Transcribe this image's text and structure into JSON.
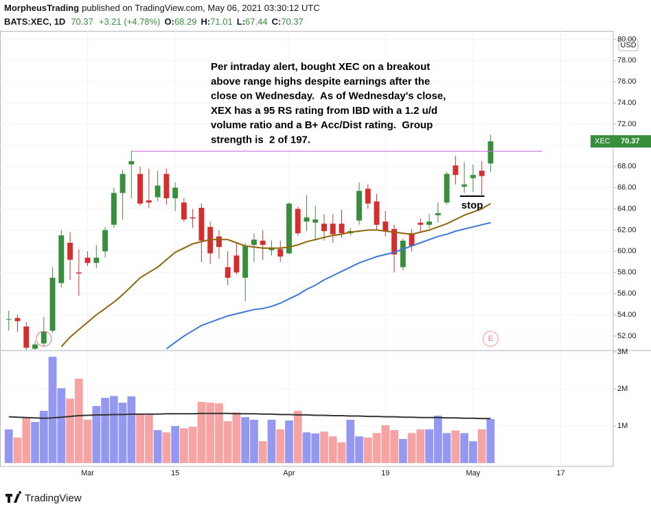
{
  "header": {
    "author": "MorpheusTrading",
    "published": "published on TradingView.com, May 06, 2021 03:30:12 UTC",
    "symbol": "BATS:XEC, 1D",
    "change": "+3.21 (+4.78%)",
    "o_label": "O:",
    "h_label": "H:",
    "l_label": "L:",
    "c_label": "C:",
    "currency": "USD",
    "brand": "TradingView"
  },
  "chart_data": [
    {
      "type": "candlestick",
      "x": [
        "2021-02-16",
        "2021-02-17",
        "2021-02-18",
        "2021-02-19",
        "2021-02-22",
        "2021-02-23",
        "2021-02-24",
        "2021-02-25",
        "2021-02-26",
        "2021-03-01",
        "2021-03-02",
        "2021-03-03",
        "2021-03-04",
        "2021-03-05",
        "2021-03-08",
        "2021-03-09",
        "2021-03-10",
        "2021-03-11",
        "2021-03-12",
        "2021-03-15",
        "2021-03-16",
        "2021-03-17",
        "2021-03-18",
        "2021-03-19",
        "2021-03-22",
        "2021-03-23",
        "2021-03-24",
        "2021-03-25",
        "2021-03-26",
        "2021-03-29",
        "2021-03-30",
        "2021-03-31",
        "2021-04-01",
        "2021-04-05",
        "2021-04-06",
        "2021-04-07",
        "2021-04-08",
        "2021-04-09",
        "2021-04-12",
        "2021-04-13",
        "2021-04-14",
        "2021-04-15",
        "2021-04-16",
        "2021-04-19",
        "2021-04-20",
        "2021-04-21",
        "2021-04-22",
        "2021-04-23",
        "2021-04-26",
        "2021-04-27",
        "2021-04-28",
        "2021-04-29",
        "2021-04-30",
        "2021-05-03",
        "2021-05-04",
        "2021-05-05"
      ],
      "open": [
        53.55,
        53.7,
        52.9,
        50.8,
        51.3,
        52.5,
        57.0,
        60.8,
        58.0,
        59.4,
        58.9,
        60.0,
        62.5,
        65.5,
        68.2,
        67.3,
        64.8,
        65.1,
        67.3,
        65.0,
        64.6,
        63.2,
        64.1,
        62.3,
        61.4,
        58.5,
        59.6,
        57.5,
        60.6,
        61.0,
        60.1,
        60.2,
        59.8,
        64.0,
        62.8,
        62.7,
        62.6,
        62.6,
        62.6,
        61.7,
        62.9,
        65.9,
        64.7,
        62.8,
        62.1,
        58.5,
        61.7,
        62.7,
        62.5,
        63.4,
        64.6,
        68.1,
        66.1,
        66.9,
        67.6,
        68.29
      ],
      "high": [
        54.4,
        54.0,
        53.3,
        51.5,
        53.8,
        58.5,
        62.0,
        61.8,
        60.2,
        60.0,
        60.6,
        62.3,
        66.0,
        67.7,
        69.5,
        68.0,
        67.8,
        67.6,
        67.8,
        66.5,
        65.0,
        64.0,
        64.5,
        62.8,
        62.0,
        60.0,
        60.8,
        60.8,
        61.7,
        62.0,
        61.0,
        61.0,
        64.6,
        64.2,
        65.3,
        64.3,
        63.5,
        63.5,
        63.9,
        62.2,
        66.5,
        66.3,
        65.4,
        63.8,
        62.5,
        61.2,
        62.1,
        63.1,
        63.5,
        64.6,
        67.5,
        69.0,
        68.4,
        68.2,
        68.5,
        71.01
      ],
      "low": [
        52.5,
        52.4,
        50.5,
        50.2,
        51.0,
        52.3,
        56.6,
        57.3,
        55.8,
        58.6,
        58.4,
        59.4,
        62.2,
        63.0,
        65.0,
        64.3,
        64.1,
        64.7,
        64.4,
        63.8,
        62.8,
        62.2,
        59.0,
        58.8,
        59.3,
        56.8,
        57.8,
        55.3,
        59.0,
        59.2,
        59.6,
        59.0,
        59.7,
        61.5,
        61.9,
        61.0,
        61.0,
        60.8,
        61.3,
        61.5,
        62.5,
        64.0,
        62.0,
        61.4,
        58.0,
        58.2,
        60.0,
        61.8,
        62.2,
        62.7,
        64.4,
        66.3,
        65.5,
        65.6,
        65.3,
        67.44
      ],
      "close": [
        53.6,
        53.4,
        50.9,
        51.2,
        52.4,
        57.5,
        61.5,
        59.2,
        57.9,
        58.9,
        59.4,
        62.0,
        65.5,
        67.3,
        68.5,
        64.5,
        64.6,
        66.2,
        65.0,
        66.0,
        63.0,
        63.1,
        61.0,
        59.8,
        60.4,
        57.5,
        58.0,
        60.5,
        61.1,
        60.6,
        60.3,
        59.5,
        64.5,
        61.7,
        63.2,
        63.0,
        61.9,
        61.6,
        61.7,
        61.9,
        65.7,
        64.5,
        62.5,
        61.9,
        59.7,
        61.0,
        60.5,
        62.5,
        62.8,
        63.6,
        67.3,
        67.2,
        66.3,
        67.2,
        67.1,
        70.37
      ],
      "up_color": "#388e3c",
      "down_color": "#d32f2f",
      "lines": [
        {
          "color": "#8b6508",
          "values": [
            null,
            null,
            null,
            null,
            null,
            null,
            51.0,
            51.9,
            52.6,
            53.3,
            54.0,
            54.6,
            55.2,
            55.9,
            56.7,
            57.5,
            58.0,
            58.5,
            59.2,
            59.9,
            60.3,
            60.7,
            60.9,
            61.1,
            61.1,
            61.1,
            60.8,
            60.5,
            60.4,
            60.3,
            60.3,
            60.3,
            60.4,
            60.6,
            60.9,
            61.1,
            61.3,
            61.5,
            61.6,
            61.8,
            61.9,
            62.0,
            62.0,
            61.9,
            61.8,
            61.7,
            61.6,
            61.8,
            62.0,
            62.3,
            62.6,
            63.0,
            63.4,
            63.7,
            64.0,
            64.5
          ]
        },
        {
          "color": "#3b78d8",
          "values": [
            null,
            null,
            null,
            null,
            null,
            null,
            null,
            null,
            null,
            null,
            null,
            null,
            null,
            null,
            null,
            null,
            null,
            null,
            50.8,
            51.4,
            52.0,
            52.5,
            53.0,
            53.3,
            53.6,
            53.9,
            54.1,
            54.3,
            54.5,
            54.6,
            54.8,
            55.1,
            55.5,
            55.9,
            56.4,
            56.8,
            57.3,
            57.7,
            58.1,
            58.5,
            58.9,
            59.2,
            59.5,
            59.7,
            59.9,
            60.2,
            60.5,
            60.8,
            61.1,
            61.4,
            61.6,
            61.9,
            62.1,
            62.3,
            62.5,
            62.7
          ]
        }
      ],
      "resistance": 69.45,
      "resistance_color": "#cc66dd",
      "stop": 65.2,
      "stop_label": "stop",
      "price_label": "XEC",
      "annotation": [
        "Per intraday alert, bought XEC on a breakout",
        "above range highs despite earnings after the",
        "close on Wednesday.  As of Wednesday's close,",
        "XEX has a 95 RS rating from IBD with a 1.2 u/d",
        "volume ratio and a B+ Acc/Dist rating.  Group",
        "strength is  2 of 197."
      ],
      "earnings_marker": "E",
      "xlim": [
        "2021-02-15",
        "2021-05-25"
      ],
      "xticks": [
        {
          "value": "2021-03-01",
          "label": "Mar"
        },
        {
          "value": "2021-03-15",
          "label": "15"
        },
        {
          "value": "2021-04-01",
          "label": "Apr"
        },
        {
          "value": "2021-04-19",
          "label": "19"
        },
        {
          "value": "2021-05-03",
          "label": "May"
        },
        {
          "value": "2021-05-17",
          "label": "17"
        }
      ],
      "ylim": [
        50.7,
        80.8
      ],
      "yticks": [
        {
          "value": 52,
          "label": "52.00"
        },
        {
          "value": 54,
          "label": "54.00"
        },
        {
          "value": 56,
          "label": "56.00"
        },
        {
          "value": 58,
          "label": "58.00"
        },
        {
          "value": 60,
          "label": "60.00"
        },
        {
          "value": 62,
          "label": "62.00"
        },
        {
          "value": 64,
          "label": "64.00"
        },
        {
          "value": 66,
          "label": "66.00"
        },
        {
          "value": 68,
          "label": "68.00"
        },
        {
          "value": 70,
          "label": "70.00"
        },
        {
          "value": 72,
          "label": "72.00"
        },
        {
          "value": 74,
          "label": "74.00"
        },
        {
          "value": 76,
          "label": "76.00"
        },
        {
          "value": 78,
          "label": "78.00"
        },
        {
          "value": 80,
          "label": "80.00"
        }
      ],
      "grid": true
    },
    {
      "type": "bar",
      "values": [
        910000,
        690000,
        1220000,
        1110000,
        1410000,
        2870000,
        2020000,
        1740000,
        2280000,
        1170000,
        1540000,
        1760000,
        1810000,
        1630000,
        1800000,
        1330000,
        1300000,
        890000,
        830000,
        1000000,
        940000,
        980000,
        1650000,
        1630000,
        1610000,
        1130000,
        1370000,
        1240000,
        1170000,
        590000,
        1170000,
        910000,
        1150000,
        1410000,
        830000,
        800000,
        850000,
        720000,
        560000,
        1170000,
        720000,
        690000,
        810000,
        1020000,
        890000,
        650000,
        810000,
        910000,
        910000,
        1280000,
        810000,
        880000,
        810000,
        590000,
        910000,
        1190000
      ],
      "up_color": "#9598f0",
      "down_color": "#f5a3a3",
      "average": {
        "color": "#333333",
        "values": [
          1250000,
          1240000,
          1230000,
          1220000,
          1210000,
          1220000,
          1240000,
          1260000,
          1280000,
          1290000,
          1300000,
          1300000,
          1310000,
          1310000,
          1320000,
          1320000,
          1320000,
          1320000,
          1330000,
          1330000,
          1330000,
          1330000,
          1340000,
          1340000,
          1340000,
          1340000,
          1330000,
          1330000,
          1330000,
          1320000,
          1320000,
          1310000,
          1310000,
          1300000,
          1300000,
          1290000,
          1290000,
          1280000,
          1280000,
          1270000,
          1270000,
          1260000,
          1260000,
          1250000,
          1250000,
          1240000,
          1240000,
          1230000,
          1230000,
          1230000,
          1220000,
          1220000,
          1210000,
          1210000,
          1200000,
          1200000
        ]
      },
      "ylim": [
        -90000,
        3020000
      ],
      "yticks": [
        {
          "value": 1000000,
          "label": "1M"
        },
        {
          "value": 2000000,
          "label": "2M"
        },
        {
          "value": 3000000,
          "label": "3M"
        }
      ],
      "grid": true
    }
  ]
}
